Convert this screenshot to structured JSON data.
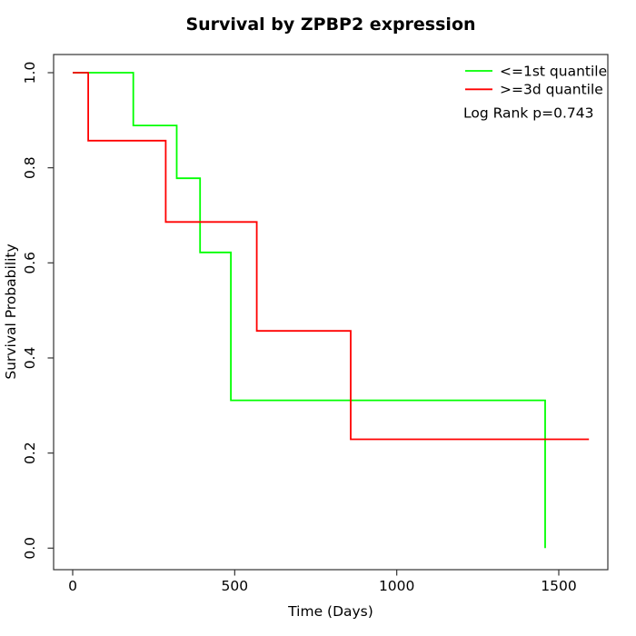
{
  "page": {
    "background": "#ffffff"
  },
  "chart_data": {
    "type": "line",
    "subtype": "kaplan-meier-step",
    "title": "Survival by ZPBP2 expression",
    "xlabel": "Time (Days)",
    "ylabel": "Survival Probability",
    "xlim": [
      0,
      1600
    ],
    "ylim": [
      0.0,
      1.0
    ],
    "grid": false,
    "x_ticks": [
      {
        "value": 0,
        "label": "0"
      },
      {
        "value": 500,
        "label": "500"
      },
      {
        "value": 1000,
        "label": "1000"
      },
      {
        "value": 1500,
        "label": "1500"
      }
    ],
    "y_ticks": [
      {
        "value": 0.0,
        "label": "0.0"
      },
      {
        "value": 0.2,
        "label": "0.2"
      },
      {
        "value": 0.4,
        "label": "0.4"
      },
      {
        "value": 0.6,
        "label": "0.6"
      },
      {
        "value": 0.8,
        "label": "0.8"
      },
      {
        "value": 1.0,
        "label": "1.0"
      }
    ],
    "legend": {
      "position": "top-right",
      "box": false
    },
    "annotation": {
      "label": "Log Rank p=0.743"
    },
    "series": [
      {
        "name": "<=1st quantile",
        "color": "#00ff00",
        "step_points": [
          [
            0,
            1.0
          ],
          [
            187,
            0.889
          ],
          [
            321,
            0.778
          ],
          [
            393,
            0.622
          ],
          [
            488,
            0.311
          ],
          [
            1458,
            0.0
          ]
        ],
        "end_time": 1458
      },
      {
        "name": ">=3d quantile",
        "color": "#ff0000",
        "step_points": [
          [
            0,
            1.0
          ],
          [
            48,
            0.857
          ],
          [
            287,
            0.686
          ],
          [
            568,
            0.457
          ],
          [
            858,
            0.229
          ]
        ],
        "end_time": 1593
      }
    ]
  }
}
